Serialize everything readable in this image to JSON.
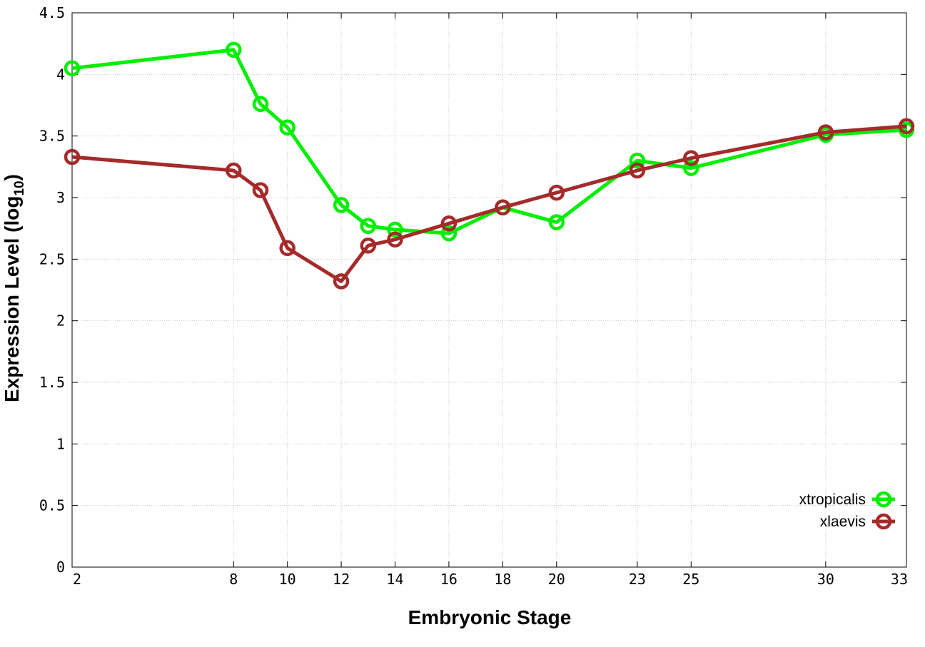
{
  "chart_data": {
    "type": "line",
    "title": "",
    "xlabel": "Embryonic Stage",
    "ylabel": "Expression Level (log",
    "ylabel_subscript": "10",
    "ylabel_suffix": ")",
    "xlim": [
      2,
      33
    ],
    "ylim": [
      0,
      4.5
    ],
    "x_ticks": [
      2,
      8,
      10,
      12,
      14,
      16,
      18,
      20,
      23,
      25,
      30,
      33
    ],
    "y_ticks": [
      0,
      0.5,
      1,
      1.5,
      2,
      2.5,
      3,
      3.5,
      4,
      4.5
    ],
    "y_tick_labels": [
      "0",
      "0.5",
      "1",
      "1.5",
      "2",
      "2.5",
      "3",
      "3.5",
      "4",
      "4.5"
    ],
    "grid": true,
    "legend_position": "bottom-right",
    "x": [
      2,
      8,
      9,
      10,
      12,
      13,
      14,
      16,
      18,
      20,
      23,
      25,
      30,
      33
    ],
    "series": [
      {
        "name": "xtropicalis",
        "color": "#00ee00",
        "marker": "circle",
        "values": [
          4.05,
          4.2,
          3.76,
          3.57,
          2.94,
          2.77,
          2.74,
          2.71,
          2.92,
          2.8,
          3.3,
          3.24,
          3.51,
          3.55
        ]
      },
      {
        "name": "xlaevis",
        "color": "#a52a2a",
        "marker": "circle",
        "values": [
          3.33,
          3.22,
          3.06,
          2.59,
          2.32,
          2.61,
          2.66,
          2.79,
          2.92,
          3.04,
          3.22,
          3.32,
          3.53,
          3.58
        ]
      }
    ]
  }
}
